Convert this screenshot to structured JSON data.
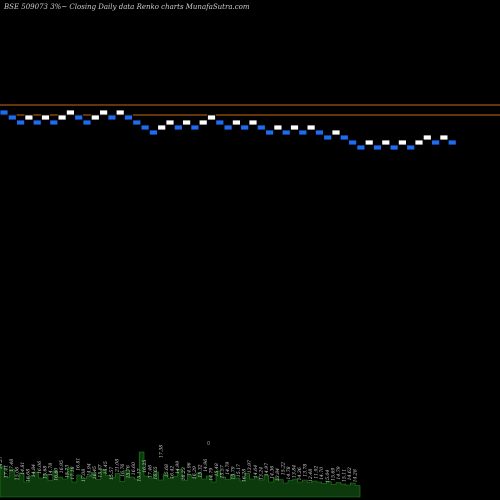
{
  "title": "BSE 509073 3%~  Closing Daily data  Renko  charts MunafaSutra.com",
  "colors": {
    "background": "#000000",
    "up_brick": "#ffffff",
    "down_brick": "#1e6cf0",
    "brick_border": "#000000",
    "reference_line": "#c96a10",
    "volume_fill": "#0c3a0c",
    "volume_edge": "#1f8a1f",
    "volume_label": "#d8d8d8"
  },
  "chart_data": {
    "type": "renko",
    "brick_size_percent": 3,
    "ylim": [
      0,
      100
    ],
    "reference_lines": [
      79,
      77
    ],
    "bricks": [
      {
        "dir": "down",
        "level": 78
      },
      {
        "dir": "down",
        "level": 77
      },
      {
        "dir": "down",
        "level": 76
      },
      {
        "dir": "up",
        "level": 77
      },
      {
        "dir": "down",
        "level": 76
      },
      {
        "dir": "up",
        "level": 77
      },
      {
        "dir": "down",
        "level": 76
      },
      {
        "dir": "up",
        "level": 77
      },
      {
        "dir": "up",
        "level": 78
      },
      {
        "dir": "down",
        "level": 77
      },
      {
        "dir": "down",
        "level": 76
      },
      {
        "dir": "up",
        "level": 77
      },
      {
        "dir": "up",
        "level": 78
      },
      {
        "dir": "down",
        "level": 77
      },
      {
        "dir": "up",
        "level": 78
      },
      {
        "dir": "down",
        "level": 77
      },
      {
        "dir": "down",
        "level": 76
      },
      {
        "dir": "down",
        "level": 75
      },
      {
        "dir": "down",
        "level": 74
      },
      {
        "dir": "up",
        "level": 75
      },
      {
        "dir": "up",
        "level": 76
      },
      {
        "dir": "down",
        "level": 75
      },
      {
        "dir": "up",
        "level": 76
      },
      {
        "dir": "down",
        "level": 75
      },
      {
        "dir": "up",
        "level": 76
      },
      {
        "dir": "up",
        "level": 77
      },
      {
        "dir": "down",
        "level": 76
      },
      {
        "dir": "down",
        "level": 75
      },
      {
        "dir": "up",
        "level": 76
      },
      {
        "dir": "down",
        "level": 75
      },
      {
        "dir": "up",
        "level": 76
      },
      {
        "dir": "down",
        "level": 75
      },
      {
        "dir": "down",
        "level": 74
      },
      {
        "dir": "up",
        "level": 75
      },
      {
        "dir": "down",
        "level": 74
      },
      {
        "dir": "up",
        "level": 75
      },
      {
        "dir": "down",
        "level": 74
      },
      {
        "dir": "up",
        "level": 75
      },
      {
        "dir": "down",
        "level": 74
      },
      {
        "dir": "down",
        "level": 73
      },
      {
        "dir": "up",
        "level": 74
      },
      {
        "dir": "down",
        "level": 73
      },
      {
        "dir": "down",
        "level": 72
      },
      {
        "dir": "down",
        "level": 71
      },
      {
        "dir": "up",
        "level": 72
      },
      {
        "dir": "down",
        "level": 71
      },
      {
        "dir": "up",
        "level": 72
      },
      {
        "dir": "down",
        "level": 71
      },
      {
        "dir": "up",
        "level": 72
      },
      {
        "dir": "down",
        "level": 71
      },
      {
        "dir": "up",
        "level": 72
      },
      {
        "dir": "up",
        "level": 73
      },
      {
        "dir": "down",
        "level": 72
      },
      {
        "dir": "up",
        "level": 73
      },
      {
        "dir": "down",
        "level": 72
      }
    ],
    "volume": {
      "relative_values": [
        0.62,
        0.4,
        0.55,
        0.35,
        0.48,
        0.3,
        0.42,
        0.5,
        0.38,
        0.45,
        0.33,
        0.52,
        0.4,
        0.36,
        0.58,
        0.3,
        0.44,
        0.37,
        0.41,
        0.49,
        0.35,
        0.55,
        0.43,
        0.39,
        0.47,
        0.31,
        0.53,
        0.4,
        0.36,
        0.9,
        0.42,
        0.38,
        0.5,
        0.34,
        0.46,
        0.37,
        0.41,
        0.55,
        0.33,
        0.44,
        0.39,
        0.48,
        0.36,
        0.42,
        0.3,
        0.52,
        0.4,
        0.35,
        0.45,
        0.38,
        0.32,
        0.47,
        0.36,
        0.4,
        0.34,
        0.43,
        0.3,
        0.38,
        0.35,
        0.28,
        0.33,
        0.36,
        0.3,
        0.34,
        0.29,
        0.32,
        0.3,
        0.27,
        0.31,
        0.25,
        0.29,
        0.26,
        0.24,
        0.28,
        0.23
      ],
      "labels": [
        "14.27",
        "17.41",
        "17.48",
        "15.06",
        "14.81",
        "16.68",
        "14.84",
        "16.06",
        "15.68",
        "14.78",
        "16.60",
        "16.95",
        "15.73",
        "17.18",
        "16.81",
        "17.08",
        "14.94",
        "16.45",
        "15.87",
        "15.45",
        "15.57",
        "21.08",
        "16.76",
        "15.76",
        "16.60",
        "15.17",
        "16.25",
        "17.46",
        "16.65",
        "17.38",
        "15.68",
        "16.42",
        "14.99",
        "16.23",
        "14.96",
        "16.29",
        "15.32",
        "14.96",
        "14.79",
        "15.48",
        "15.57",
        "14.79",
        "15.79",
        "15.17",
        "16.28",
        "13.97",
        "14.64",
        "13.24",
        "14.97",
        "14.36",
        "13.84",
        "15.22",
        "14.78",
        "13.84",
        "14.36",
        "13.78",
        "12.48",
        "11.92",
        "14.70",
        "15.04",
        "15.69",
        "14.79",
        "15.11",
        "14.62",
        "14.28"
      ],
      "marker": "0"
    }
  }
}
